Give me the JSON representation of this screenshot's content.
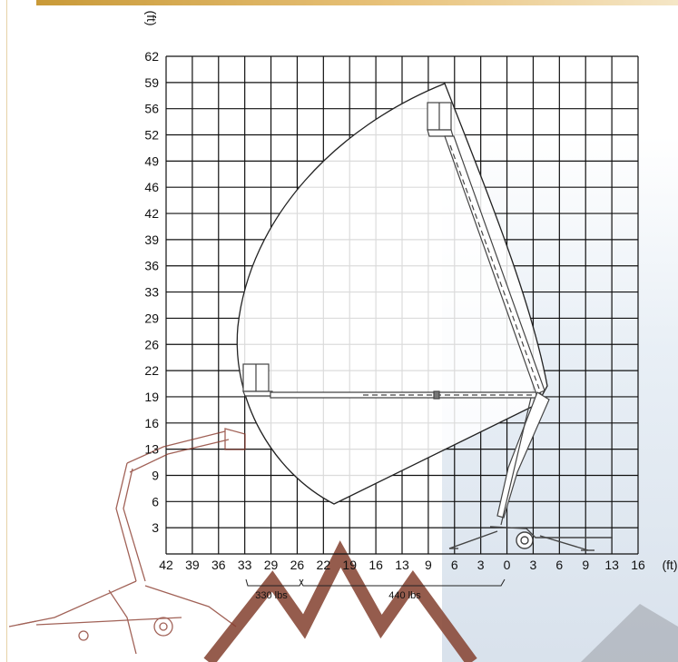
{
  "diagram": {
    "y_unit": "(ft)",
    "x_unit": "(ft)",
    "y_ticks": [
      "62",
      "59",
      "56",
      "52",
      "49",
      "46",
      "42",
      "39",
      "36",
      "33",
      "29",
      "26",
      "22",
      "19",
      "16",
      "13",
      "9",
      "6",
      "3"
    ],
    "x_ticks": [
      "42",
      "39",
      "36",
      "33",
      "29",
      "26",
      "22",
      "19",
      "16",
      "13",
      "9",
      "6",
      "3",
      "0",
      "3",
      "6",
      "9",
      "13",
      "16"
    ],
    "load_zones": [
      {
        "label": "330 lbs"
      },
      {
        "label": "440 lbs"
      }
    ]
  },
  "colors": {
    "grid": "#111111",
    "envelope_fill": "#ffffff",
    "machine_outline": "#555555",
    "ghost_machine": "#8a3b2e",
    "watermark": "#8a4a3a",
    "accent_bar": "#c99a38"
  }
}
